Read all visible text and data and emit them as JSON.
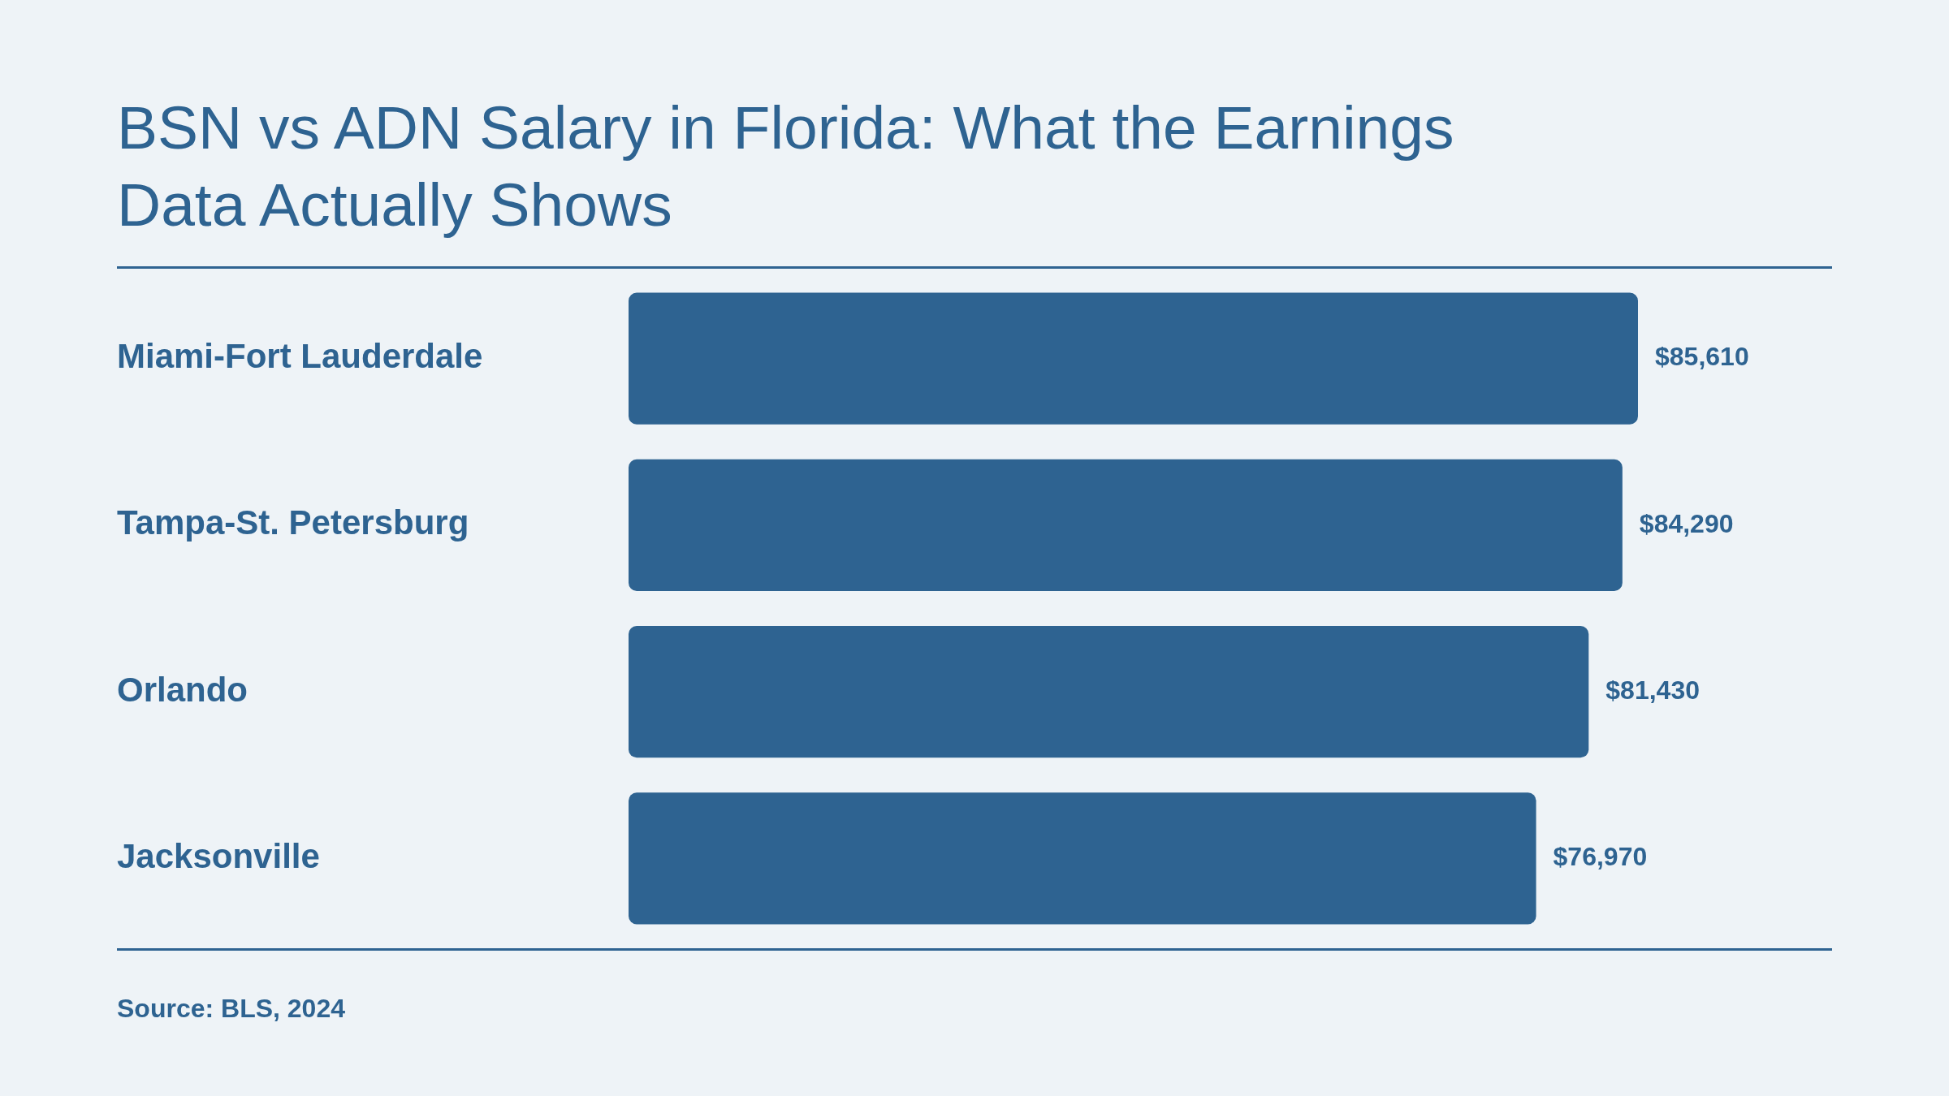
{
  "chart_data": {
    "type": "bar",
    "orientation": "horizontal",
    "title": "BSN vs ADN Salary in Florida: What the Earnings Data Actually Shows",
    "categories": [
      "Miami-Fort Lauderdale",
      "Tampa-St. Petersburg",
      "Orlando",
      "Jacksonville"
    ],
    "values": [
      85610,
      84290,
      81430,
      76970
    ],
    "color": "#2e6391",
    "value_labels": [
      "$85,610",
      "$84,290",
      "$81,430",
      "$76,970"
    ],
    "annotations": [
      "Source: BLS, 2024"
    ]
  }
}
